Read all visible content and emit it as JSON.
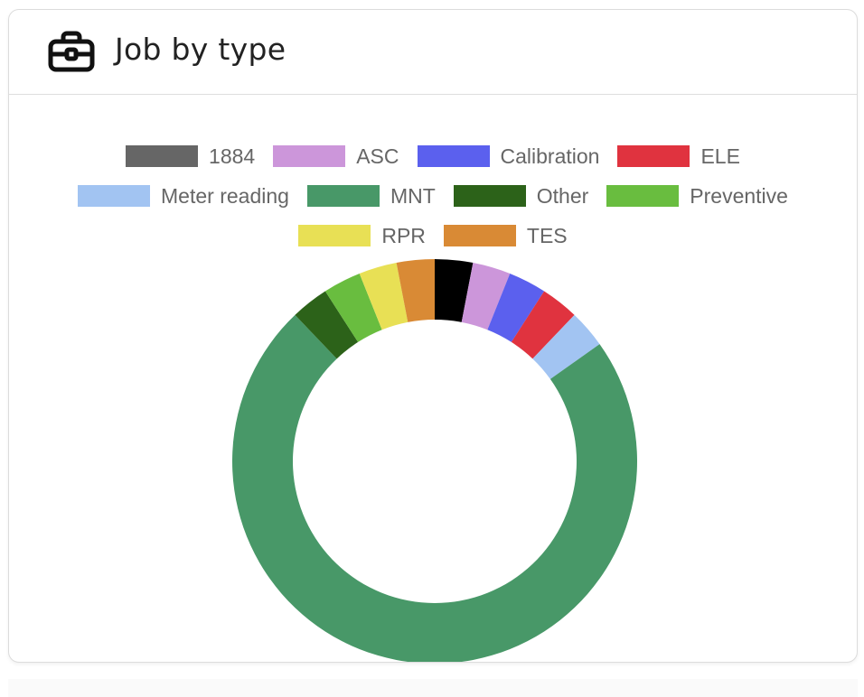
{
  "card": {
    "title": "Job by type",
    "icon": "briefcase-icon"
  },
  "chart_data": {
    "type": "pie",
    "variant": "doughnut",
    "title": "",
    "legend_position": "top",
    "categories": [
      "1884",
      "ASC",
      "Calibration",
      "ELE",
      "Meter reading",
      "MNT",
      "Other",
      "Preventive",
      "RPR",
      "TES"
    ],
    "series": [
      {
        "values": [
          1,
          1,
          1,
          1,
          1,
          24,
          1,
          1,
          1,
          1
        ],
        "colors": [
          "#000000",
          "#cc96da",
          "#5b60ee",
          "#e0333f",
          "#a2c4f2",
          "#489868",
          "#2c6219",
          "#69bd3f",
          "#e8e055",
          "#d98a35"
        ]
      }
    ],
    "legend_colors": [
      "#666666",
      "#cc96da",
      "#5b60ee",
      "#e0333f",
      "#a2c4f2",
      "#489868",
      "#2c6219",
      "#69bd3f",
      "#e8e055",
      "#d98a35"
    ]
  }
}
